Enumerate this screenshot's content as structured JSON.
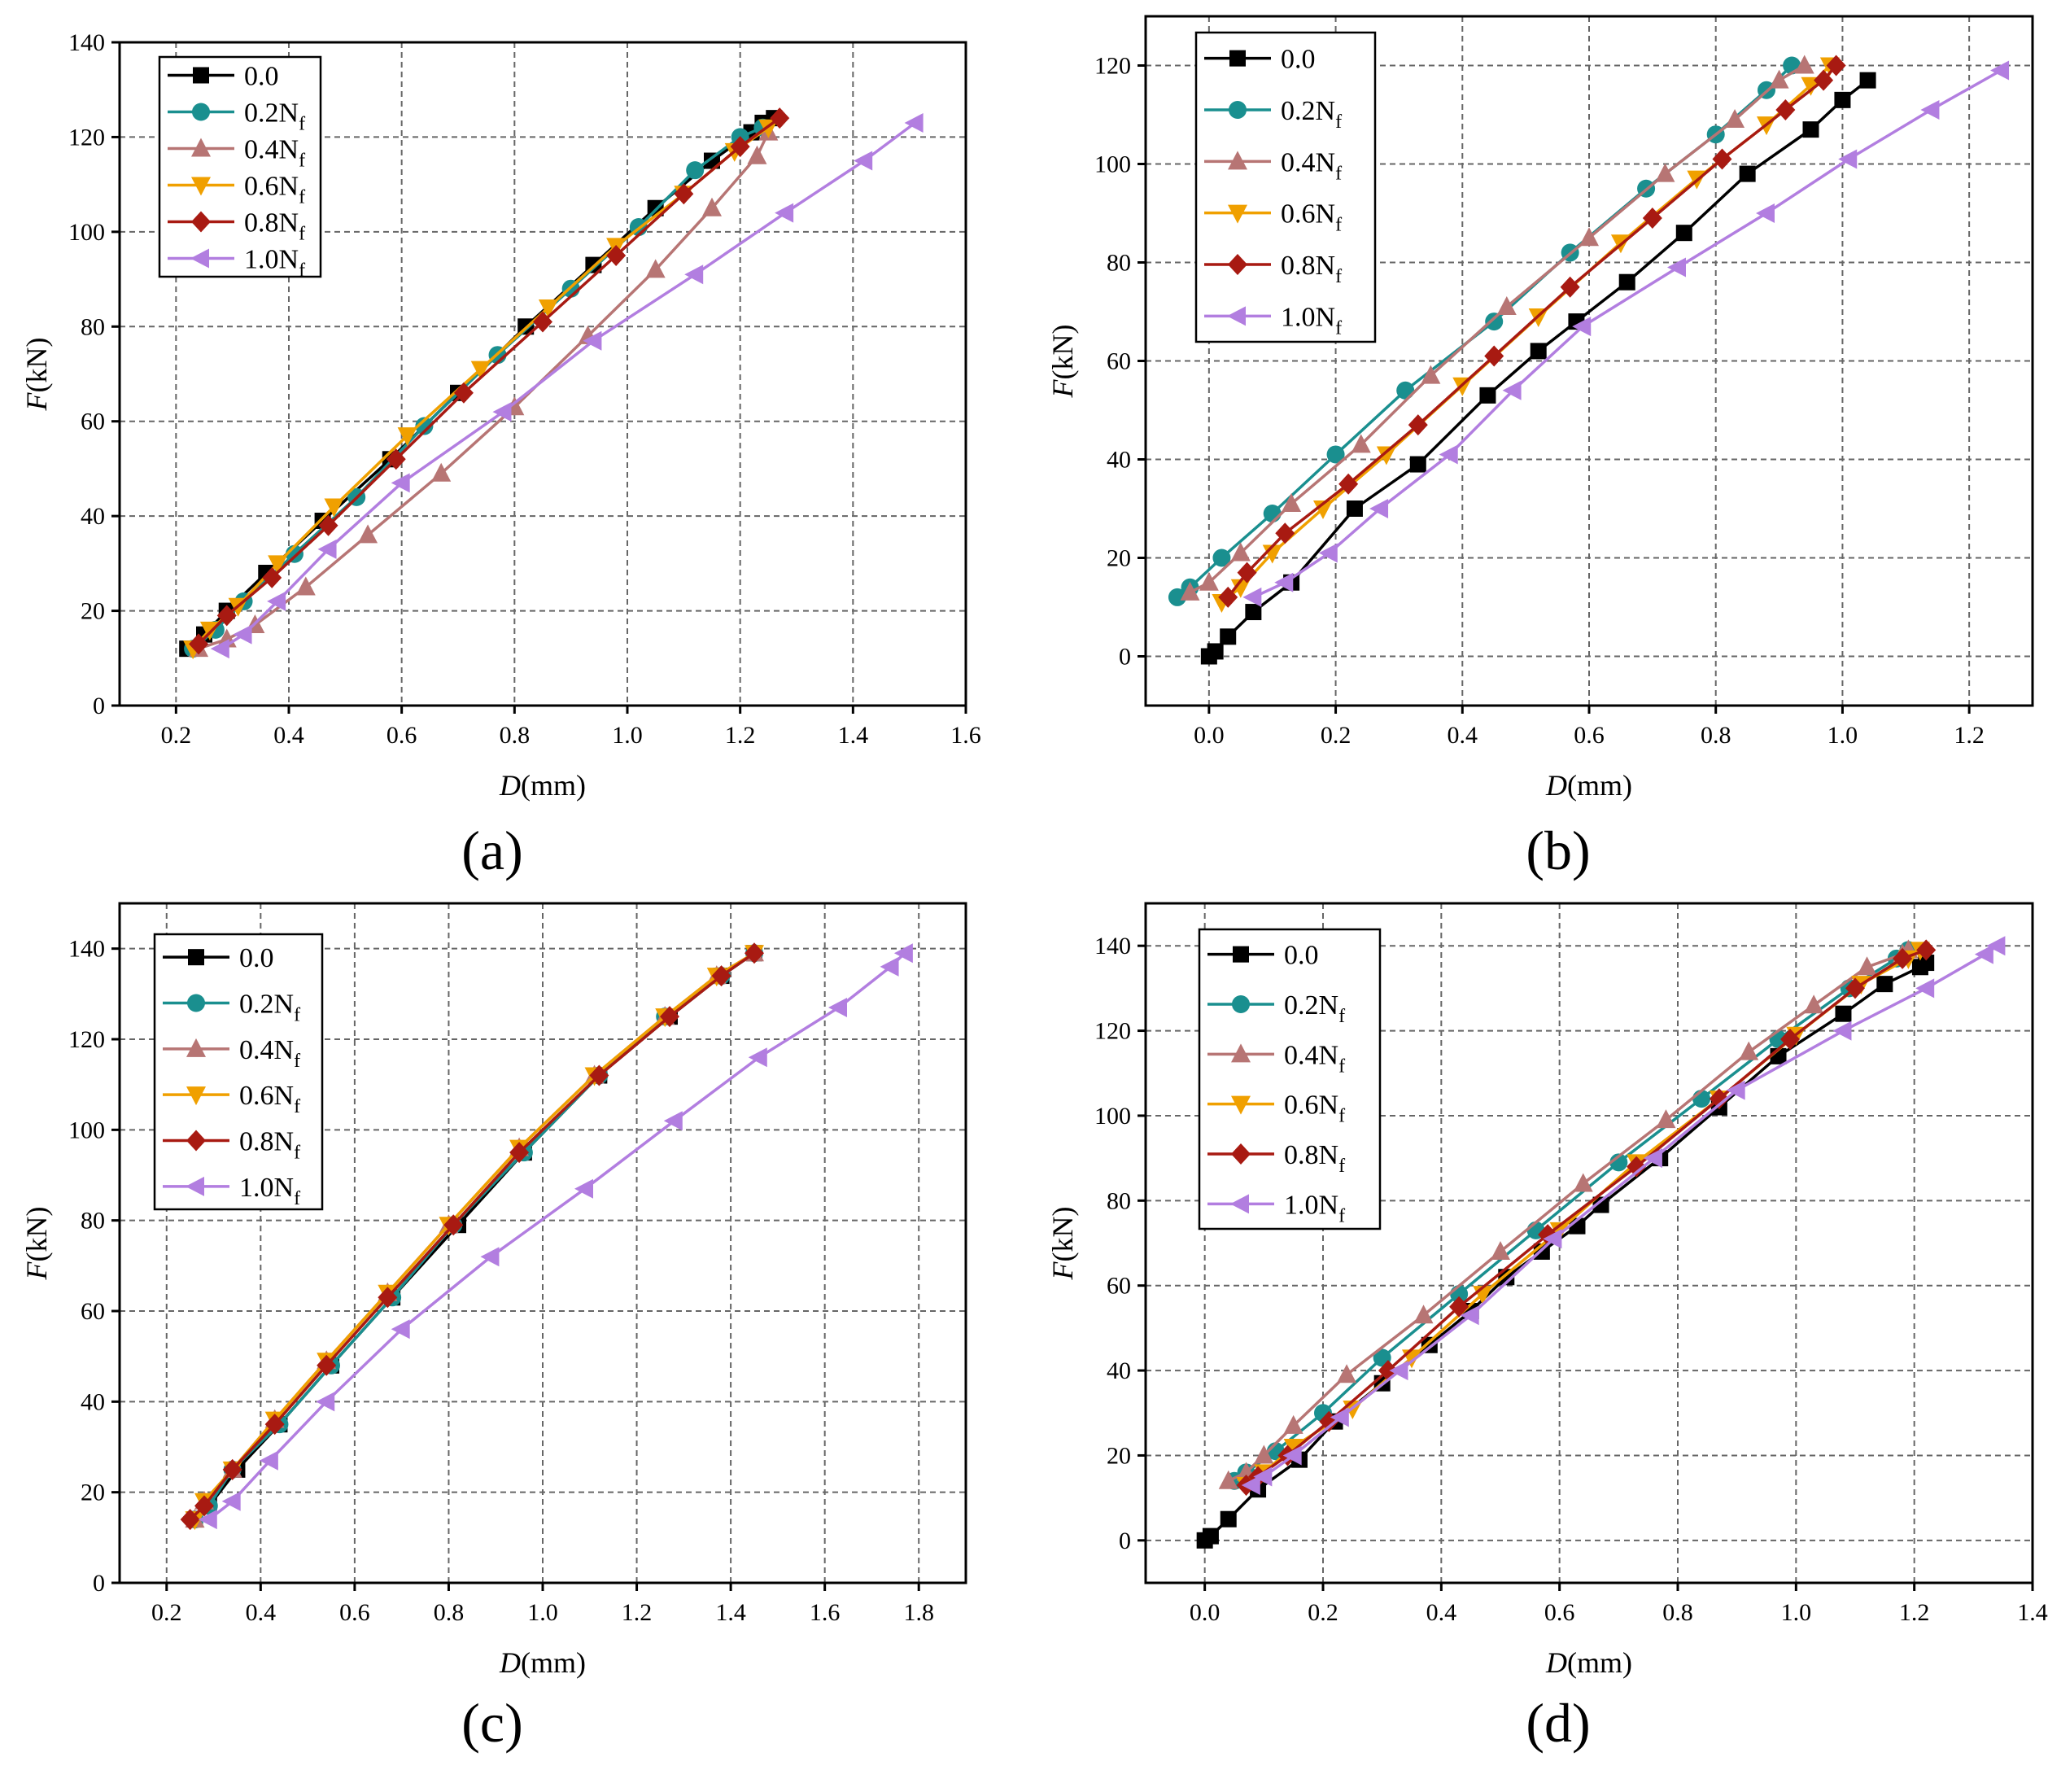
{
  "figure": {
    "panels": [
      "(a)",
      "(b)",
      "(c)",
      "(d)"
    ]
  },
  "series_styles": [
    {
      "name": "0.0",
      "color": "#000000",
      "marker": "square"
    },
    {
      "name": "0.2Nf",
      "color": "#1a8f8f",
      "marker": "circle"
    },
    {
      "name": "0.4Nf",
      "color": "#b77574",
      "marker": "triangle-up"
    },
    {
      "name": "0.6Nf",
      "color": "#f0a000",
      "marker": "triangle-down"
    },
    {
      "name": "0.8Nf",
      "color": "#a81a12",
      "marker": "diamond"
    },
    {
      "name": "1.0Nf",
      "color": "#b27ee0",
      "marker": "triangle-left"
    }
  ],
  "legend_labels": [
    {
      "base": "0.0",
      "sub": ""
    },
    {
      "base": "0.2N",
      "sub": "f"
    },
    {
      "base": "0.4N",
      "sub": "f"
    },
    {
      "base": "0.6N",
      "sub": "f"
    },
    {
      "base": "0.8N",
      "sub": "f"
    },
    {
      "base": "1.0N",
      "sub": "f"
    }
  ],
  "chart_data": [
    {
      "type": "line",
      "panel_label": "(a)",
      "xlabel": {
        "italic": "D",
        "rest": "(mm)"
      },
      "ylabel": {
        "italic": "F",
        "rest": "(kN)"
      },
      "xlim": [
        0.1,
        1.6
      ],
      "ylim": [
        0,
        140
      ],
      "xticks": [
        "0.2",
        "0.4",
        "0.6",
        "0.8",
        "1.0",
        "1.2",
        "1.4",
        "1.6"
      ],
      "xtick_values": [
        0.2,
        0.4,
        0.6,
        0.8,
        1.0,
        1.2,
        1.4,
        1.6
      ],
      "yticks": [
        "0",
        "20",
        "40",
        "60",
        "80",
        "100",
        "120",
        "140"
      ],
      "ytick_values": [
        0,
        20,
        40,
        60,
        80,
        100,
        120,
        140
      ],
      "legend_position": "top-left",
      "series": [
        {
          "name": "0.0",
          "x": [
            0.22,
            0.25,
            0.29,
            0.36,
            0.46,
            0.58,
            0.7,
            0.82,
            0.94,
            1.05,
            1.15,
            1.22,
            1.24,
            1.26
          ],
          "y": [
            12,
            15,
            20,
            28,
            39,
            52,
            66,
            80,
            93,
            105,
            115,
            121,
            123,
            124
          ]
        },
        {
          "name": "0.2Nf",
          "x": [
            0.23,
            0.27,
            0.32,
            0.41,
            0.52,
            0.64,
            0.77,
            0.9,
            1.02,
            1.12,
            1.2,
            1.24
          ],
          "y": [
            12,
            16,
            22,
            32,
            44,
            59,
            74,
            88,
            101,
            113,
            120,
            122
          ]
        },
        {
          "name": "0.4Nf",
          "x": [
            0.24,
            0.29,
            0.34,
            0.43,
            0.54,
            0.67,
            0.8,
            0.93,
            1.05,
            1.15,
            1.23,
            1.25
          ],
          "y": [
            12,
            14,
            17,
            25,
            36,
            49,
            63,
            78,
            92,
            105,
            116,
            121
          ]
        },
        {
          "name": "0.6Nf",
          "x": [
            0.23,
            0.26,
            0.31,
            0.38,
            0.48,
            0.61,
            0.74,
            0.86,
            0.98,
            1.1,
            1.19,
            1.25
          ],
          "y": [
            12,
            16,
            21,
            30,
            42,
            57,
            71,
            84,
            97,
            108,
            117,
            122
          ]
        },
        {
          "name": "0.8Nf",
          "x": [
            0.24,
            0.29,
            0.37,
            0.47,
            0.59,
            0.71,
            0.85,
            0.98,
            1.1,
            1.2,
            1.27
          ],
          "y": [
            13,
            19,
            27,
            38,
            52,
            66,
            81,
            95,
            108,
            118,
            124
          ]
        },
        {
          "name": "1.0Nf",
          "x": [
            0.28,
            0.32,
            0.38,
            0.47,
            0.6,
            0.78,
            0.94,
            1.12,
            1.28,
            1.42,
            1.51
          ],
          "y": [
            12,
            15,
            22,
            33,
            47,
            62,
            77,
            91,
            104,
            115,
            123
          ]
        }
      ]
    },
    {
      "type": "line",
      "panel_label": "(b)",
      "xlabel": {
        "italic": "D",
        "rest": "(mm)"
      },
      "ylabel": {
        "italic": "F",
        "rest": "(kN)"
      },
      "xlim": [
        -0.1,
        1.3
      ],
      "ylim": [
        -10,
        130
      ],
      "xticks": [
        "0.0",
        "0.2",
        "0.4",
        "0.6",
        "0.8",
        "1.0",
        "1.2"
      ],
      "xtick_values": [
        0.0,
        0.2,
        0.4,
        0.6,
        0.8,
        1.0,
        1.2
      ],
      "yticks": [
        "0",
        "20",
        "40",
        "60",
        "80",
        "100",
        "120"
      ],
      "ytick_values": [
        0,
        20,
        40,
        60,
        80,
        100,
        120
      ],
      "legend_position": "top-left",
      "series": [
        {
          "name": "0.0",
          "x": [
            0.0,
            0.01,
            0.03,
            0.07,
            0.13,
            0.23,
            0.33,
            0.44,
            0.52,
            0.58,
            0.66,
            0.75,
            0.85,
            0.95,
            1.0,
            1.04
          ],
          "y": [
            0,
            1,
            4,
            9,
            15,
            30,
            39,
            53,
            62,
            68,
            76,
            86,
            98,
            107,
            113,
            117
          ]
        },
        {
          "name": "0.2Nf",
          "x": [
            -0.05,
            -0.03,
            0.02,
            0.1,
            0.2,
            0.31,
            0.45,
            0.57,
            0.69,
            0.8,
            0.88,
            0.92
          ],
          "y": [
            12,
            14,
            20,
            29,
            41,
            54,
            68,
            82,
            95,
            106,
            115,
            120
          ]
        },
        {
          "name": "0.4Nf",
          "x": [
            -0.03,
            0.0,
            0.05,
            0.13,
            0.24,
            0.35,
            0.47,
            0.6,
            0.72,
            0.83,
            0.9,
            0.94
          ],
          "y": [
            13,
            15,
            21,
            31,
            43,
            57,
            71,
            85,
            98,
            109,
            117,
            120
          ]
        },
        {
          "name": "0.6Nf",
          "x": [
            0.02,
            0.05,
            0.1,
            0.18,
            0.28,
            0.4,
            0.52,
            0.65,
            0.77,
            0.88,
            0.95,
            0.98
          ],
          "y": [
            11,
            14,
            21,
            30,
            41,
            55,
            69,
            84,
            97,
            108,
            116,
            120
          ]
        },
        {
          "name": "0.8Nf",
          "x": [
            0.03,
            0.06,
            0.12,
            0.22,
            0.33,
            0.45,
            0.57,
            0.7,
            0.81,
            0.91,
            0.97,
            0.99
          ],
          "y": [
            12,
            17,
            25,
            35,
            47,
            61,
            75,
            89,
            101,
            111,
            117,
            120
          ]
        },
        {
          "name": "1.0Nf",
          "x": [
            0.07,
            0.12,
            0.19,
            0.27,
            0.38,
            0.48,
            0.59,
            0.74,
            0.88,
            1.01,
            1.14,
            1.25
          ],
          "y": [
            12,
            15,
            21,
            30,
            41,
            54,
            67,
            79,
            90,
            101,
            111,
            119
          ]
        }
      ]
    },
    {
      "type": "line",
      "panel_label": "(c)",
      "xlabel": {
        "italic": "D",
        "rest": "(mm)"
      },
      "ylabel": {
        "italic": "F",
        "rest": "(kN)"
      },
      "xlim": [
        0.1,
        1.9
      ],
      "ylim": [
        0,
        150
      ],
      "xticks": [
        "0.2",
        "0.4",
        "0.6",
        "0.8",
        "1.0",
        "1.2",
        "1.4",
        "1.6",
        "1.8"
      ],
      "xtick_values": [
        0.2,
        0.4,
        0.6,
        0.8,
        1.0,
        1.2,
        1.4,
        1.6,
        1.8
      ],
      "yticks": [
        "0",
        "20",
        "40",
        "60",
        "80",
        "100",
        "120",
        "140"
      ],
      "ytick_values": [
        0,
        20,
        40,
        60,
        80,
        100,
        120,
        140
      ],
      "legend_position": "top-left",
      "series": [
        {
          "name": "0.0",
          "x": [
            0.26,
            0.29,
            0.35,
            0.44,
            0.55,
            0.68,
            0.82,
            0.96,
            1.12,
            1.27,
            1.38,
            1.45
          ],
          "y": [
            14,
            17,
            25,
            35,
            48,
            63,
            79,
            95,
            112,
            125,
            134,
            139
          ]
        },
        {
          "name": "0.2Nf",
          "x": [
            0.26,
            0.29,
            0.34,
            0.44,
            0.55,
            0.68,
            0.81,
            0.96,
            1.12,
            1.26,
            1.38,
            1.45
          ],
          "y": [
            14,
            17,
            25,
            35,
            48,
            63,
            79,
            95,
            112,
            125,
            134,
            139
          ]
        },
        {
          "name": "0.4Nf",
          "x": [
            0.26,
            0.28,
            0.34,
            0.43,
            0.54,
            0.67,
            0.8,
            0.95,
            1.11,
            1.26,
            1.37,
            1.45
          ],
          "y": [
            14,
            18,
            25,
            36,
            49,
            64,
            79,
            96,
            112,
            125,
            134,
            139
          ]
        },
        {
          "name": "0.6Nf",
          "x": [
            0.26,
            0.28,
            0.34,
            0.43,
            0.54,
            0.67,
            0.8,
            0.95,
            1.11,
            1.26,
            1.37,
            1.45
          ],
          "y": [
            14,
            18,
            25,
            36,
            49,
            64,
            79,
            96,
            112,
            125,
            134,
            139
          ]
        },
        {
          "name": "0.8Nf",
          "x": [
            0.25,
            0.28,
            0.34,
            0.43,
            0.54,
            0.67,
            0.81,
            0.95,
            1.12,
            1.27,
            1.38,
            1.45
          ],
          "y": [
            14,
            17,
            25,
            35,
            48,
            63,
            79,
            95,
            112,
            125,
            134,
            139
          ]
        },
        {
          "name": "1.0Nf",
          "x": [
            0.29,
            0.34,
            0.42,
            0.54,
            0.7,
            0.89,
            1.09,
            1.28,
            1.46,
            1.63,
            1.74,
            1.77
          ],
          "y": [
            14,
            18,
            27,
            40,
            56,
            72,
            87,
            102,
            116,
            127,
            136,
            139
          ]
        }
      ]
    },
    {
      "type": "line",
      "panel_label": "(d)",
      "xlabel": {
        "italic": "D",
        "rest": "(mm)"
      },
      "ylabel": {
        "italic": "F",
        "rest": "(kN)"
      },
      "xlim": [
        -0.1,
        1.4
      ],
      "ylim": [
        -10,
        150
      ],
      "xticks": [
        "0.0",
        "0.2",
        "0.4",
        "0.6",
        "0.8",
        "1.0",
        "1.2",
        "1.4"
      ],
      "xtick_values": [
        0.0,
        0.2,
        0.4,
        0.6,
        0.8,
        1.0,
        1.2,
        1.4
      ],
      "yticks": [
        "0",
        "20",
        "40",
        "60",
        "80",
        "100",
        "120",
        "140"
      ],
      "ytick_values": [
        0,
        20,
        40,
        60,
        80,
        100,
        120,
        140
      ],
      "legend_position": "top-left",
      "series": [
        {
          "name": "0.0",
          "x": [
            0.0,
            0.01,
            0.04,
            0.09,
            0.16,
            0.22,
            0.3,
            0.38,
            0.45,
            0.51,
            0.57,
            0.63,
            0.67,
            0.77,
            0.87,
            0.97,
            1.08,
            1.15,
            1.21,
            1.22
          ],
          "y": [
            0,
            1,
            5,
            12,
            19,
            28,
            37,
            46,
            54,
            62,
            68,
            74,
            79,
            90,
            102,
            114,
            124,
            131,
            135,
            136
          ]
        },
        {
          "name": "0.2Nf",
          "x": [
            0.05,
            0.07,
            0.12,
            0.2,
            0.3,
            0.43,
            0.56,
            0.7,
            0.84,
            0.97,
            1.09,
            1.17,
            1.19
          ],
          "y": [
            14,
            16,
            21,
            30,
            43,
            58,
            73,
            89,
            104,
            118,
            130,
            137,
            139
          ]
        },
        {
          "name": "0.4Nf",
          "x": [
            0.04,
            0.07,
            0.1,
            0.15,
            0.24,
            0.37,
            0.5,
            0.64,
            0.78,
            0.92,
            1.03,
            1.12,
            1.18,
            1.19
          ],
          "y": [
            14,
            16,
            20,
            27,
            39,
            53,
            68,
            84,
            99,
            115,
            126,
            135,
            138,
            139
          ]
        },
        {
          "name": "0.6Nf",
          "x": [
            0.07,
            0.1,
            0.15,
            0.25,
            0.35,
            0.47,
            0.6,
            0.73,
            0.87,
            1.0,
            1.11,
            1.19,
            1.21
          ],
          "y": [
            13,
            16,
            22,
            31,
            43,
            58,
            73,
            89,
            104,
            119,
            131,
            137,
            139
          ]
        },
        {
          "name": "0.8Nf",
          "x": [
            0.07,
            0.09,
            0.14,
            0.21,
            0.31,
            0.43,
            0.58,
            0.73,
            0.87,
            0.99,
            1.1,
            1.18,
            1.22
          ],
          "y": [
            13,
            15,
            20,
            28,
            40,
            55,
            72,
            88,
            104,
            118,
            130,
            137,
            139
          ]
        },
        {
          "name": "1.0Nf",
          "x": [
            0.08,
            0.1,
            0.15,
            0.23,
            0.33,
            0.45,
            0.59,
            0.76,
            0.9,
            1.08,
            1.22,
            1.32,
            1.34
          ],
          "y": [
            13,
            15,
            20,
            29,
            40,
            53,
            71,
            90,
            106,
            120,
            130,
            138,
            140
          ]
        }
      ]
    }
  ]
}
